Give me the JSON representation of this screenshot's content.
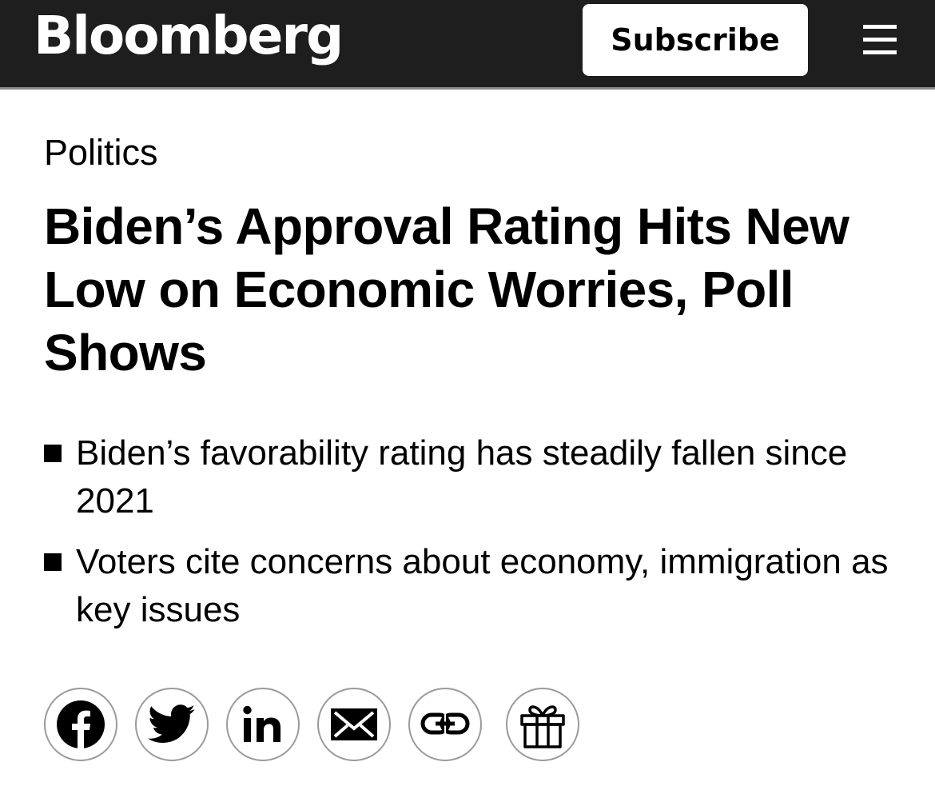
{
  "header": {
    "logo_text": "Bloomberg",
    "subscribe_label": "Subscribe",
    "menu_icon": "hamburger-menu-icon"
  },
  "article": {
    "category": "Politics",
    "headline": "Biden’s Approval Rating Hits New Low on Economic Worries, Poll Shows",
    "bullets": [
      "Biden’s favorability rating has steadily fallen since 2021",
      "Voters cite concerns about economy, immigration as key issues"
    ]
  },
  "share": {
    "buttons": [
      {
        "name": "facebook",
        "icon": "facebook-icon"
      },
      {
        "name": "twitter",
        "icon": "twitter-icon"
      },
      {
        "name": "linkedin",
        "icon": "linkedin-icon"
      },
      {
        "name": "email",
        "icon": "email-icon"
      },
      {
        "name": "copy-link",
        "icon": "link-icon"
      },
      {
        "name": "gift",
        "icon": "gift-icon"
      }
    ]
  },
  "colors": {
    "header_bg": "#1e1e1e",
    "header_border": "#8a8a8a",
    "text": "#000000",
    "share_border": "#9a9a9a"
  }
}
